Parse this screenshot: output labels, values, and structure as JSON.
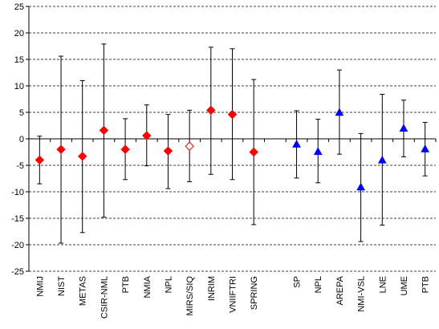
{
  "chart_data": {
    "type": "scatter",
    "subtype": "point-with-error-bars",
    "title": "",
    "xlabel": "",
    "ylabel": "",
    "ylim": [
      -25,
      25
    ],
    "yticks": [
      -25,
      -20,
      -15,
      -10,
      -5,
      0,
      5,
      10,
      15,
      20,
      25
    ],
    "grid": "horizontal dashed",
    "legend": "none",
    "categories": [
      "NMIJ",
      "NIST",
      "METAS",
      "CSIR-NML",
      "PTB",
      "NMIA",
      "NPL",
      "MIRS/SIQ",
      "INRIM",
      "VNIIFTRI",
      "SPRING",
      "",
      "SP",
      "NPL",
      "AREPA",
      "NMI-VSL",
      "LNE",
      "UME",
      "PTB"
    ],
    "series": [
      {
        "marker": "diamond",
        "color": "#ff0000",
        "points": [
          {
            "category": "NMIJ",
            "index": 0,
            "y": -4.0,
            "low": -8.5,
            "high": 0.5
          },
          {
            "category": "NIST",
            "index": 1,
            "y": -2.0,
            "low": -19.7,
            "high": 15.6
          },
          {
            "category": "METAS",
            "index": 2,
            "y": -3.3,
            "low": -17.7,
            "high": 11.0
          },
          {
            "category": "CSIR-NML",
            "index": 3,
            "y": 1.6,
            "low": -14.8,
            "high": 17.9
          },
          {
            "category": "PTB",
            "index": 4,
            "y": -2.0,
            "low": -7.7,
            "high": 3.8
          },
          {
            "category": "NMIA",
            "index": 5,
            "y": 0.6,
            "low": -5.1,
            "high": 6.4
          },
          {
            "category": "NPL",
            "index": 6,
            "y": -2.3,
            "low": -9.4,
            "high": 4.6
          },
          {
            "category": "INRIM",
            "index": 8,
            "y": 5.4,
            "low": -6.7,
            "high": 17.3
          },
          {
            "category": "VNIIFTRI",
            "index": 9,
            "y": 4.6,
            "low": -7.7,
            "high": 17.0
          },
          {
            "category": "SPRING",
            "index": 10,
            "y": -2.5,
            "low": -16.2,
            "high": 11.2
          }
        ]
      },
      {
        "marker": "diamond-open",
        "color": "#ff0000",
        "points": [
          {
            "category": "MIRS/SIQ",
            "index": 7,
            "y": -1.4,
            "low": -8.1,
            "high": 5.4
          }
        ]
      },
      {
        "marker": "triangle",
        "color": "#0000ff",
        "points": [
          {
            "category": "SP",
            "index": 12,
            "y": -1.0,
            "low": -7.4,
            "high": 5.3
          },
          {
            "category": "NPL",
            "index": 13,
            "y": -2.4,
            "low": -8.3,
            "high": 3.7
          },
          {
            "category": "AREPA",
            "index": 14,
            "y": 5.0,
            "low": -2.9,
            "high": 13.0
          },
          {
            "category": "NMI-VSL",
            "index": 15,
            "y": -9.1,
            "low": -19.4,
            "high": 1.0
          },
          {
            "category": "LNE",
            "index": 16,
            "y": -4.0,
            "low": -16.3,
            "high": 8.4
          },
          {
            "category": "UME",
            "index": 17,
            "y": 2.0,
            "low": -3.4,
            "high": 7.3
          },
          {
            "category": "PTB",
            "index": 18,
            "y": -1.9,
            "low": -7.0,
            "high": 3.1
          }
        ]
      }
    ]
  }
}
